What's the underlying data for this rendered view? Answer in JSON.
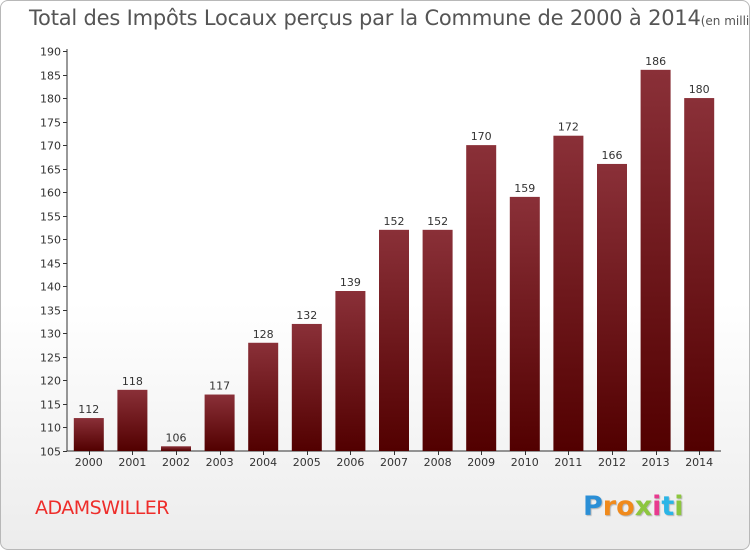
{
  "chart_data": {
    "type": "bar",
    "title": "Total des Impôts Locaux perçus par la Commune de 2000 à 2014",
    "title_unit": "(en milliers d'€)",
    "categories": [
      "2000",
      "2001",
      "2002",
      "2003",
      "2004",
      "2005",
      "2006",
      "2007",
      "2008",
      "2009",
      "2010",
      "2011",
      "2012",
      "2013",
      "2014"
    ],
    "values": [
      112,
      118,
      106,
      117,
      128,
      132,
      139,
      152,
      152,
      170,
      159,
      172,
      166,
      186,
      180
    ],
    "ylim": [
      105,
      190
    ],
    "yticks": [
      105,
      110,
      115,
      120,
      125,
      130,
      135,
      140,
      145,
      150,
      155,
      160,
      165,
      170,
      175,
      180,
      185,
      190
    ],
    "xlabel": "",
    "ylabel": "",
    "bar_color_top": "#8a3038",
    "bar_color_bottom": "#520000",
    "grid": false
  },
  "footer": {
    "commune": "ADAMSWILLER",
    "logo_letters": [
      "P",
      "r",
      "o",
      "x",
      "i",
      "t",
      "i"
    ],
    "logo_colors": [
      "#2b8fd6",
      "#f08a1c",
      "#f08a1c",
      "#8dc63f",
      "#e83a8f",
      "#2bb5e6",
      "#8dc63f"
    ]
  }
}
